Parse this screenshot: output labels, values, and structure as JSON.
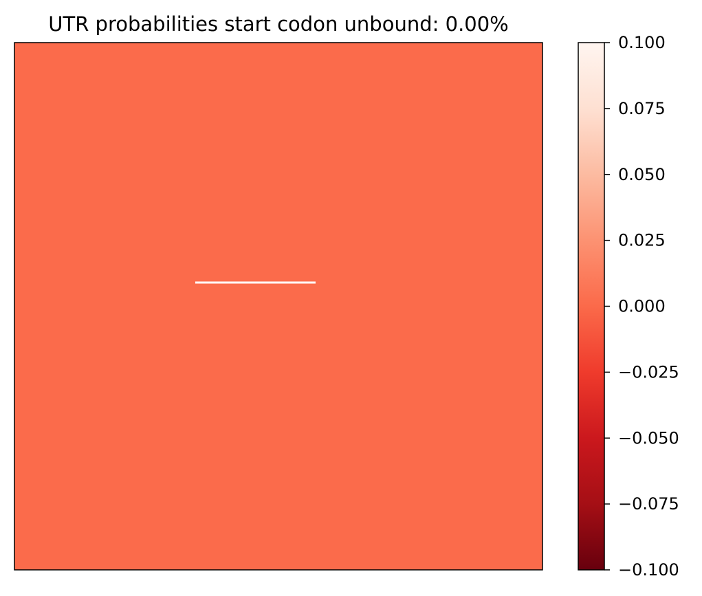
{
  "chart_data": {
    "type": "heatmap",
    "title": "UTR probabilities start codon unbound: 0.00%",
    "xlabel": "",
    "ylabel": "",
    "value": 0.0,
    "colormap": "Reds_r",
    "colorbar": {
      "range": [
        -0.1,
        0.1
      ],
      "ticks": [
        0.1,
        0.075,
        0.05,
        0.025,
        0.0,
        -0.025,
        -0.05,
        -0.075,
        -0.1
      ],
      "tick_labels": [
        "0.100",
        "0.075",
        "0.050",
        "0.025",
        "0.000",
        "−0.025",
        "−0.050",
        "−0.075",
        "−0.100"
      ]
    },
    "colors": {
      "cell": "#fb6b4b",
      "cmap_top": "#fff5f0",
      "cmap_stops": [
        "#fff5f0",
        "#fee0d2",
        "#fcbba1",
        "#fc9272",
        "#fb6a4a",
        "#ef3b2c",
        "#cb181d",
        "#a50f15",
        "#67000d"
      ],
      "marker": "#ffffff"
    },
    "marker": {
      "type": "horizontal-line",
      "color": "white"
    },
    "grid": false,
    "axes_ticks": false
  }
}
